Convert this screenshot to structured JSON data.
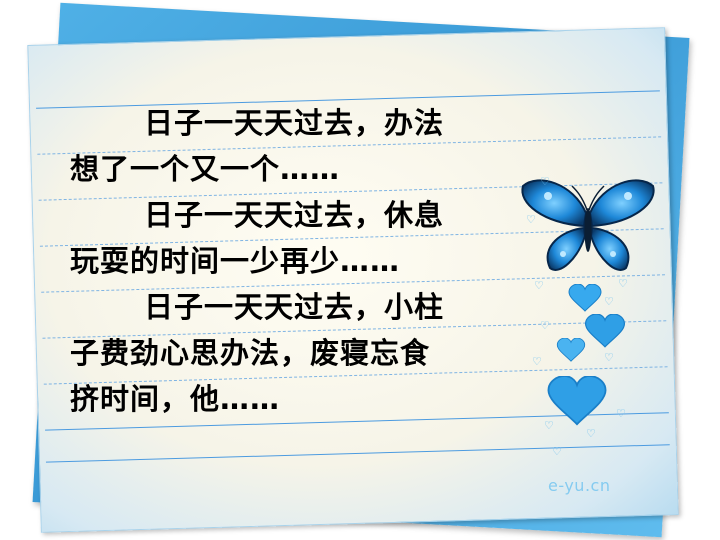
{
  "lines": [
    "日子一天天过去，办法",
    "想了一个又一个……",
    "日子一天天过去，休息",
    "玩耍的时间一少再少……",
    "日子一天天过去，小柱",
    "子费劲心思办法，废寝忘食",
    "挤时间，他……"
  ],
  "watermark": "e-yu.cn",
  "colors": {
    "card_blue": "#3a9ad6",
    "rule_blue": "#4c9be0",
    "heart_blue": "#2f9fe6",
    "butterfly_blue": "#1e88d8"
  },
  "icons": [
    "butterfly-icon",
    "heart-icon",
    "sparkle-icon"
  ]
}
